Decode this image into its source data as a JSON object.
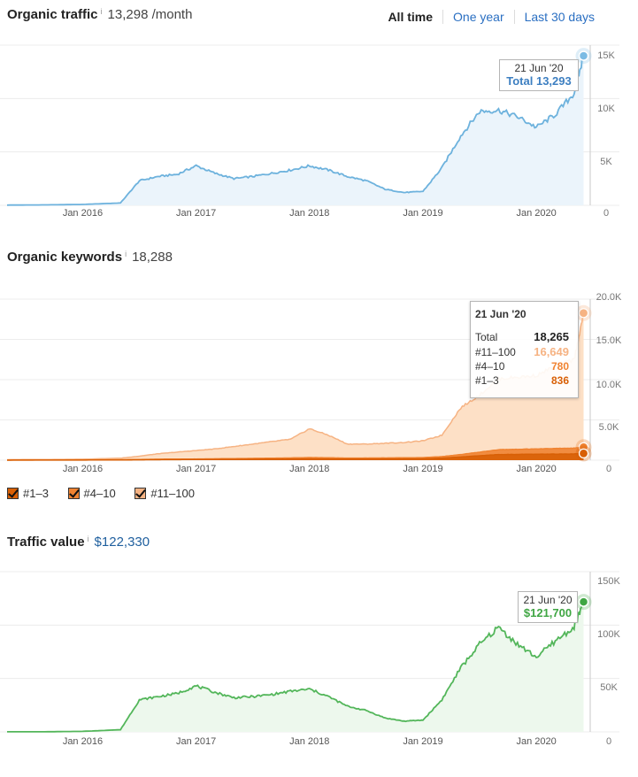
{
  "colors": {
    "traffic": "#6db2dd",
    "traffic_fill": "#ebf4fb",
    "traffic_dot": "#7bbbe4",
    "traffic_total": "#3d7fc1",
    "kw_11_100": "#f6b383",
    "kw_11_100_fill": "#fde0c6",
    "kw_4_10": "#f08331",
    "kw_1_3": "#d85f05",
    "value": "#53b65a",
    "value_fill": "#edf8ed",
    "value_dot": "#3fa643",
    "link": "#2a6fc2",
    "grid": "#ececec"
  },
  "x_ticks": [
    "Jan 2016",
    "Jan 2017",
    "Jan 2018",
    "Jan 2019",
    "Jan 2020"
  ],
  "organic_traffic": {
    "title": "Organic traffic",
    "info": "i",
    "metric": "13,298 /month",
    "periods": {
      "all_time": "All time",
      "one_year": "One year",
      "last_30_days": "Last 30 days"
    },
    "tooltip": {
      "date": "21 Jun '20",
      "total": "Total 13,293"
    }
  },
  "organic_keywords": {
    "title": "Organic keywords",
    "info": "i",
    "metric": "18,288",
    "tooltip": {
      "date": "21 Jun '20",
      "rows": [
        {
          "label": "Total",
          "value": "18,265",
          "color": "#222222"
        },
        {
          "label": "#11–100",
          "value": "16,649",
          "color": "#f6b383"
        },
        {
          "label": "#4–10",
          "value": "780",
          "color": "#f08331"
        },
        {
          "label": "#1–3",
          "value": "836",
          "color": "#d85f05"
        }
      ]
    },
    "legend": [
      {
        "label": "#1–3",
        "color": "#d85f05"
      },
      {
        "label": "#4–10",
        "color": "#f08331"
      },
      {
        "label": "#11–100",
        "color": "#f6b383"
      }
    ]
  },
  "traffic_value": {
    "title": "Traffic value",
    "info": "i",
    "metric": "$122,330",
    "tooltip": {
      "date": "21 Jun '20",
      "total": "$121,700"
    }
  },
  "chart_data": [
    {
      "type": "area",
      "title": "Organic traffic",
      "xlim": [
        "2015-05",
        "2020-06"
      ],
      "ylim": [
        0,
        15000
      ],
      "yticks": [
        "15K",
        "10K",
        "5K",
        "0"
      ],
      "grid": true,
      "series": [
        {
          "x": [
            "2015-05",
            "2015-09",
            "2016-01",
            "2016-05",
            "2016-07",
            "2016-09",
            "2016-11",
            "2017-01",
            "2017-03",
            "2017-05",
            "2017-07",
            "2017-09",
            "2017-11",
            "2018-01",
            "2018-03",
            "2018-05",
            "2018-07",
            "2018-09",
            "2018-11",
            "2019-01",
            "2019-03",
            "2019-05",
            "2019-07",
            "2019-09",
            "2019-11",
            "2020-01",
            "2020-03",
            "2020-05",
            "2020-06"
          ],
          "values": [
            20,
            40,
            80,
            220,
            2300,
            2700,
            2900,
            3700,
            3000,
            2500,
            2700,
            3000,
            3300,
            3700,
            3300,
            2700,
            2300,
            1500,
            1200,
            1300,
            3500,
            6500,
            8800,
            8900,
            8300,
            7300,
            8500,
            10500,
            14000
          ]
        }
      ]
    },
    {
      "type": "area",
      "title": "Organic keywords",
      "xlim": [
        "2015-05",
        "2020-06"
      ],
      "ylim": [
        0,
        20000
      ],
      "yticks": [
        "20.0K",
        "15.0K",
        "10.0K",
        "5.0K",
        "0"
      ],
      "grid": true,
      "x": [
        "2015-05",
        "2015-09",
        "2016-01",
        "2016-05",
        "2016-07",
        "2016-09",
        "2016-11",
        "2017-01",
        "2017-03",
        "2017-05",
        "2017-07",
        "2017-09",
        "2017-11",
        "2018-01",
        "2018-03",
        "2018-05",
        "2018-07",
        "2018-09",
        "2018-11",
        "2019-01",
        "2019-03",
        "2019-05",
        "2019-07",
        "2019-09",
        "2019-11",
        "2020-01",
        "2020-03",
        "2020-05",
        "2020-06"
      ],
      "series": [
        {
          "name": "#11–100",
          "values": [
            60,
            90,
            120,
            250,
            500,
            800,
            1000,
            1200,
            1400,
            1700,
            2000,
            2300,
            2600,
            3900,
            3100,
            2000,
            2000,
            2100,
            2200,
            2400,
            3100,
            6500,
            8100,
            10100,
            10300,
            10500,
            11700,
            12500,
            18265
          ]
        },
        {
          "name": "#4–10",
          "values": [
            10,
            20,
            30,
            60,
            90,
            120,
            140,
            150,
            170,
            200,
            220,
            250,
            280,
            330,
            300,
            260,
            270,
            280,
            300,
            320,
            450,
            700,
            1000,
            1300,
            1350,
            1400,
            1450,
            1500,
            1616
          ]
        },
        {
          "name": "#1–3",
          "values": [
            5,
            10,
            15,
            30,
            45,
            60,
            70,
            80,
            90,
            100,
            110,
            120,
            130,
            160,
            150,
            130,
            140,
            150,
            160,
            170,
            250,
            400,
            550,
            700,
            720,
            740,
            760,
            780,
            836
          ]
        }
      ]
    },
    {
      "type": "area",
      "title": "Traffic value",
      "xlim": [
        "2015-05",
        "2020-06"
      ],
      "ylim": [
        0,
        150000
      ],
      "yticks": [
        "150K",
        "100K",
        "50K",
        "0"
      ],
      "grid": true,
      "series": [
        {
          "x": [
            "2015-05",
            "2015-09",
            "2016-01",
            "2016-05",
            "2016-07",
            "2016-09",
            "2016-11",
            "2017-01",
            "2017-03",
            "2017-05",
            "2017-07",
            "2017-09",
            "2017-11",
            "2018-01",
            "2018-03",
            "2018-05",
            "2018-07",
            "2018-09",
            "2018-11",
            "2019-01",
            "2019-03",
            "2019-05",
            "2019-07",
            "2019-09",
            "2019-11",
            "2020-01",
            "2020-03",
            "2020-05",
            "2020-06"
          ],
          "values": [
            50,
            100,
            500,
            2000,
            30000,
            33000,
            36000,
            43000,
            37000,
            32000,
            33000,
            35000,
            38000,
            40000,
            33000,
            24000,
            20000,
            13000,
            10000,
            11000,
            30000,
            60000,
            82000,
            98000,
            82000,
            70000,
            85000,
            98000,
            121700
          ]
        }
      ]
    }
  ]
}
